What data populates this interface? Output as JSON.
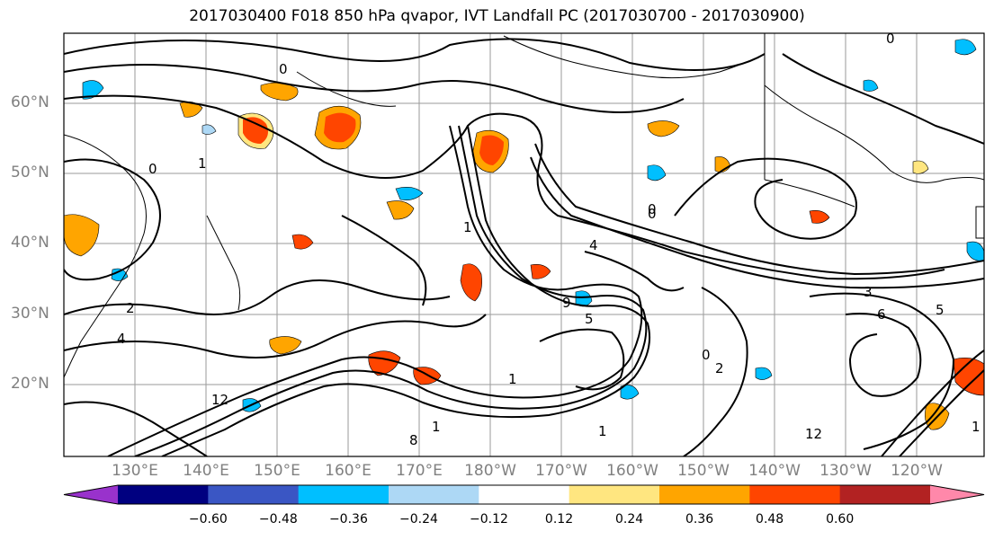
{
  "title": "2017030400 F018 850 hPa qvapor, IVT Landfall PC (2017030700 - 2017030900)",
  "lat_labels": [
    "60°N",
    "50°N",
    "40°N",
    "30°N",
    "20°N"
  ],
  "lon_labels": [
    "130°E",
    "140°E",
    "150°E",
    "160°E",
    "170°E",
    "180°W",
    "170°W",
    "160°W",
    "150°W",
    "140°W",
    "130°W",
    "120°W"
  ],
  "colorbar": {
    "tick_labels": [
      "−0.60",
      "−0.48",
      "−0.36",
      "−0.24",
      "−0.12",
      "0.12",
      "0.24",
      "0.36",
      "0.48",
      "0.60"
    ],
    "colors": [
      "#9932cc",
      "#000080",
      "#3a56c4",
      "#00bfff",
      "#add8f5",
      "#ffffff",
      "#ffe680",
      "#ffa500",
      "#ff4500",
      "#b22222",
      "#ff88aa"
    ]
  },
  "contour_labels": [
    "0",
    "0",
    "1",
    "0",
    "0",
    "1",
    "4",
    "5",
    "9",
    "12",
    "8",
    "1",
    "2",
    "0",
    "1",
    "1",
    "12",
    "4",
    "2",
    "3",
    "5",
    "6",
    "1",
    "0"
  ]
}
